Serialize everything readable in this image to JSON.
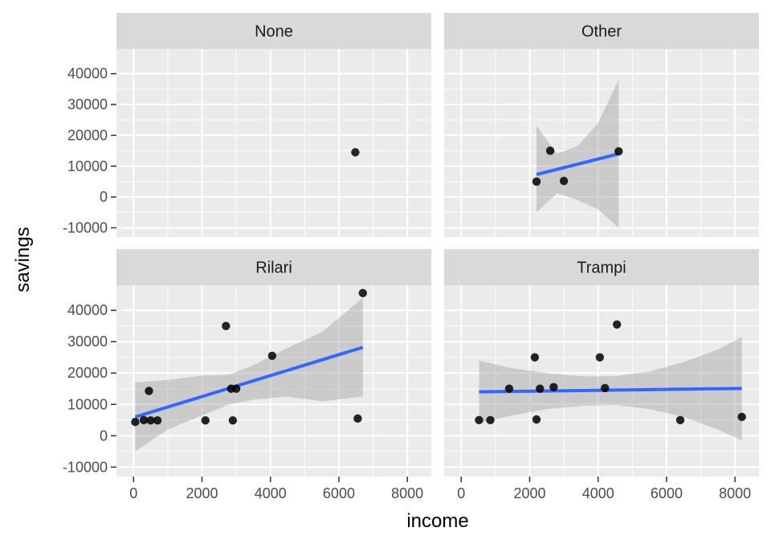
{
  "chart_data": {
    "type": "scatter",
    "xlabel": "income",
    "ylabel": "savings",
    "xlim": [
      -500,
      8700
    ],
    "ylim": [
      -13000,
      48000
    ],
    "x_ticks": [
      0,
      2000,
      4000,
      6000,
      8000
    ],
    "y_ticks": [
      -10000,
      0,
      10000,
      20000,
      30000,
      40000
    ],
    "grid": true,
    "colors": {
      "panel_bg": "#ebebeb",
      "strip_bg": "#d9d9d9",
      "grid": "#ffffff",
      "point": "#000000",
      "fit_line": "#3366ff",
      "ribbon": "#999999"
    },
    "facets": [
      {
        "label": "None",
        "points": [
          [
            6480,
            14500
          ]
        ],
        "fit": null
      },
      {
        "label": "Other",
        "points": [
          [
            2200,
            5000
          ],
          [
            2600,
            15000
          ],
          [
            3000,
            5200
          ],
          [
            4600,
            14800
          ]
        ],
        "fit": {
          "line": [
            [
              2200,
              7300
            ],
            [
              4600,
              14000
            ]
          ],
          "ribbon": [
            [
              2200,
              23000,
              -5000
            ],
            [
              2800,
              14000,
              1200
            ],
            [
              3400,
              16500,
              -1000
            ],
            [
              4000,
              24000,
              -4000
            ],
            [
              4600,
              38000,
              -10000
            ]
          ]
        }
      },
      {
        "label": "Rilari",
        "points": [
          [
            50,
            4400
          ],
          [
            300,
            5000
          ],
          [
            450,
            14300
          ],
          [
            500,
            4900
          ],
          [
            700,
            4900
          ],
          [
            2100,
            4900
          ],
          [
            2700,
            35000
          ],
          [
            2850,
            15000
          ],
          [
            2900,
            4900
          ],
          [
            3000,
            15000
          ],
          [
            4050,
            25500
          ],
          [
            6550,
            5500
          ],
          [
            6700,
            45500
          ]
        ],
        "fit": {
          "line": [
            [
              50,
              6000
            ],
            [
              6700,
              28200
            ]
          ],
          "ribbon": [
            [
              50,
              17000,
              -5000
            ],
            [
              1000,
              17800,
              2000
            ],
            [
              2000,
              19200,
              6500
            ],
            [
              2800,
              19500,
              10000
            ],
            [
              3500,
              22500,
              11500
            ],
            [
              4500,
              28000,
              12500
            ],
            [
              5500,
              33000,
              11000
            ],
            [
              6700,
              44000,
              12500
            ]
          ]
        }
      },
      {
        "label": "Trampi",
        "points": [
          [
            520,
            5000
          ],
          [
            850,
            5000
          ],
          [
            1400,
            15000
          ],
          [
            2150,
            25000
          ],
          [
            2200,
            5200
          ],
          [
            2300,
            15000
          ],
          [
            2700,
            15500
          ],
          [
            4050,
            25000
          ],
          [
            4200,
            15200
          ],
          [
            4550,
            35500
          ],
          [
            6400,
            5000
          ],
          [
            8200,
            6000
          ]
        ],
        "fit": {
          "line": [
            [
              520,
              14000
            ],
            [
              8200,
              15100
            ]
          ],
          "ribbon": [
            [
              520,
              24000,
              4000
            ],
            [
              1500,
              21500,
              6500
            ],
            [
              2500,
              20000,
              8500
            ],
            [
              3500,
              19000,
              9500
            ],
            [
              4500,
              19000,
              9800
            ],
            [
              5500,
              20500,
              8500
            ],
            [
              6500,
              23500,
              6000
            ],
            [
              7500,
              27500,
              2000
            ],
            [
              8200,
              31500,
              -1500
            ]
          ]
        }
      }
    ]
  }
}
